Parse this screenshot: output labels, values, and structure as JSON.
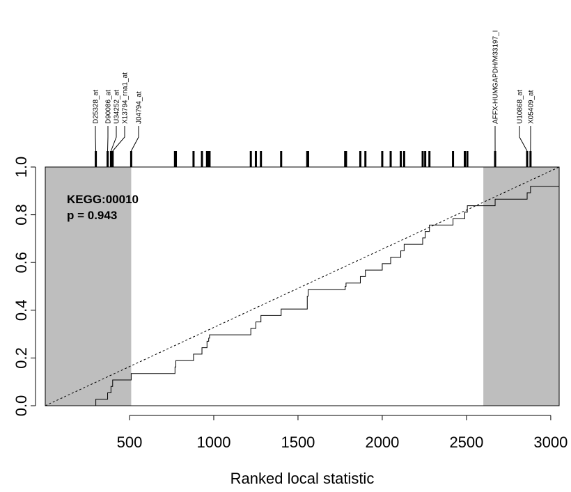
{
  "chart_data": {
    "type": "line",
    "xlabel": "Ranked local statistic",
    "ylabel": "",
    "xlim": [
      0,
      3050
    ],
    "ylim": [
      0,
      1
    ],
    "x_ticks": [
      500,
      1000,
      1500,
      2000,
      2500,
      3000
    ],
    "y_ticks": [
      0.0,
      0.2,
      0.4,
      0.6,
      0.8,
      1.0
    ],
    "x_tick_labels": [
      "500",
      "1000",
      "1500",
      "2000",
      "2500",
      "3000"
    ],
    "y_tick_labels": [
      "0.0",
      "0.2",
      "0.4",
      "0.6",
      "0.8",
      "1.0"
    ],
    "annotation": {
      "set": "KEGG:00010",
      "pvalue": "p = 0.943"
    },
    "shaded_regions": [
      [
        0,
        510
      ],
      [
        2600,
        3050
      ]
    ],
    "shade_color": "#bebebe",
    "reference_line": {
      "x": [
        0,
        3050
      ],
      "y": [
        0,
        1
      ],
      "style": "dashed"
    },
    "ecdf": {
      "x": [
        300,
        370,
        390,
        400,
        510,
        770,
        775,
        880,
        930,
        960,
        970,
        975,
        1220,
        1250,
        1280,
        1400,
        1555,
        1560,
        1780,
        1785,
        1870,
        1900,
        2000,
        2050,
        2110,
        2130,
        2240,
        2255,
        2280,
        2420,
        2490,
        2505,
        2670,
        2860,
        2880
      ],
      "y": [
        0.027,
        0.054,
        0.081,
        0.108,
        0.135,
        0.162,
        0.189,
        0.216,
        0.243,
        0.27,
        0.283,
        0.297,
        0.324,
        0.351,
        0.378,
        0.405,
        0.459,
        0.486,
        0.5,
        0.514,
        0.541,
        0.568,
        0.595,
        0.622,
        0.649,
        0.676,
        0.703,
        0.73,
        0.757,
        0.784,
        0.811,
        0.838,
        0.865,
        0.892,
        0.919
      ]
    },
    "rug_x": [
      300,
      370,
      390,
      400,
      510,
      770,
      775,
      880,
      930,
      960,
      970,
      975,
      1220,
      1250,
      1280,
      1400,
      1555,
      1560,
      1780,
      1785,
      1870,
      1900,
      2000,
      2050,
      2110,
      2130,
      2240,
      2255,
      2280,
      2420,
      2490,
      2505,
      2670,
      2860,
      2880
    ],
    "labeled_genes": [
      {
        "name": "D25328_at",
        "x": 300
      },
      {
        "name": "D90086_at",
        "x": 370
      },
      {
        "name": "U34252_at",
        "x": 390
      },
      {
        "name": "X13794_rna1_at",
        "x": 400
      },
      {
        "name": "J04794_at",
        "x": 510
      },
      {
        "name": "AFFX-HUMGAPDH/M33197_I",
        "x": 2670
      },
      {
        "name": "U10868_at",
        "x": 2860
      },
      {
        "name": "X05409_at",
        "x": 2880
      }
    ]
  }
}
